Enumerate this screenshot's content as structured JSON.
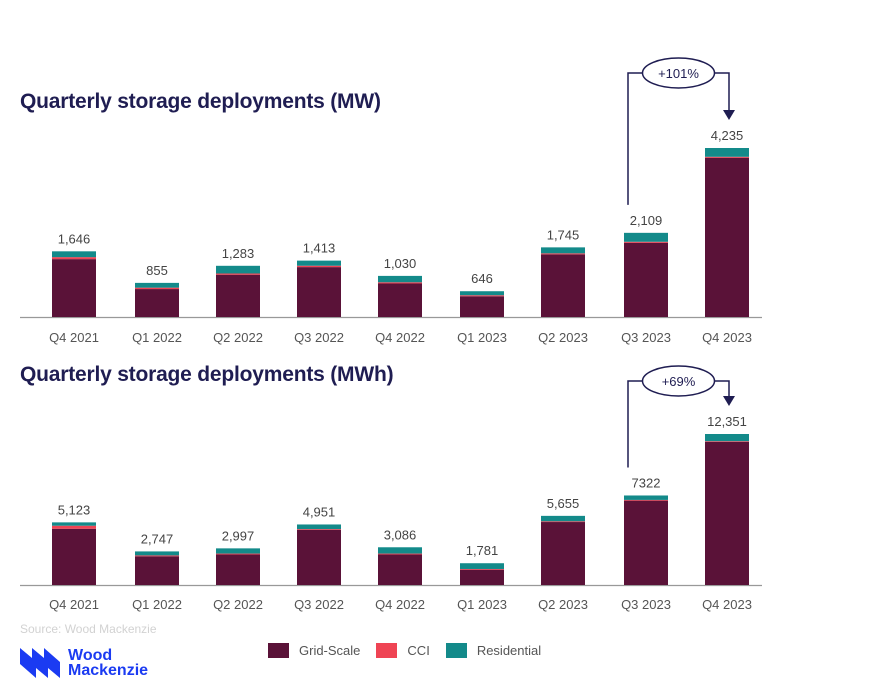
{
  "chart_data": [
    {
      "type": "bar",
      "stacked": true,
      "title": "Quarterly storage deployments (MW)",
      "xlabel": "",
      "ylabel": "MW",
      "categories": [
        "Q4 2021",
        "Q1 2022",
        "Q2 2022",
        "Q3 2022",
        "Q4 2022",
        "Q1 2023",
        "Q2 2023",
        "Q3 2023",
        "Q4 2023"
      ],
      "totals": [
        1646,
        855,
        1283,
        1413,
        1030,
        646,
        1745,
        2109,
        4235
      ],
      "total_labels": [
        "1,646",
        "855",
        "1,283",
        "1,413",
        "1,030",
        "646",
        "1,745",
        "2,109",
        "4,235"
      ],
      "series": [
        {
          "name": "Grid-Scale",
          "values": [
            1450,
            700,
            1060,
            1250,
            840,
            520,
            1570,
            1860,
            3990
          ]
        },
        {
          "name": "CCI",
          "values": [
            50,
            35,
            30,
            35,
            30,
            25,
            25,
            25,
            25
          ]
        },
        {
          "name": "Residential",
          "values": [
            146,
            120,
            193,
            128,
            160,
            101,
            150,
            224,
            220
          ]
        }
      ],
      "annotation": {
        "label": "+101%",
        "from": "Q3 2023",
        "to": "Q4 2023"
      },
      "ylim": [
        0,
        4300
      ],
      "grid": false
    },
    {
      "type": "bar",
      "stacked": true,
      "title": "Quarterly storage deployments (MWh)",
      "xlabel": "",
      "ylabel": "MWh",
      "categories": [
        "Q4 2021",
        "Q1 2022",
        "Q2 2022",
        "Q3 2022",
        "Q4 2022",
        "Q1 2023",
        "Q2 2023",
        "Q3 2023",
        "Q4 2023"
      ],
      "totals": [
        5123,
        2747,
        2997,
        4951,
        3086,
        1781,
        5655,
        7322,
        12351
      ],
      "total_labels": [
        "5,123",
        "2,747",
        "2,997",
        "4,951",
        "3,086",
        "1,781",
        "5,655",
        "7322",
        "12,351"
      ],
      "series": [
        {
          "name": "Grid-Scale",
          "values": [
            4600,
            2350,
            2500,
            4500,
            2500,
            1250,
            5150,
            6900,
            11700
          ]
        },
        {
          "name": "CCI",
          "values": [
            250,
            70,
            70,
            70,
            70,
            60,
            60,
            60,
            60
          ]
        },
        {
          "name": "Residential",
          "values": [
            273,
            327,
            427,
            381,
            516,
            471,
            445,
            362,
            591
          ]
        }
      ],
      "annotation": {
        "label": "+69%",
        "from": "Q3 2023",
        "to": "Q4 2023"
      },
      "ylim": [
        0,
        12600
      ],
      "grid": false
    }
  ],
  "legend": {
    "items": [
      {
        "name": "Grid-Scale",
        "color": "#5a1238"
      },
      {
        "name": "CCI",
        "color": "#ef4454"
      },
      {
        "name": "Residential",
        "color": "#138a8a"
      }
    ],
    "placement": "bottom"
  },
  "source": "Source: Wood Mackenzie",
  "logo": {
    "line1": "Wood",
    "line2": "Mackenzie"
  },
  "colors": {
    "title": "#1f1d52",
    "axis": "#999999",
    "annotation": "#1f1d52",
    "label": "#444444"
  }
}
